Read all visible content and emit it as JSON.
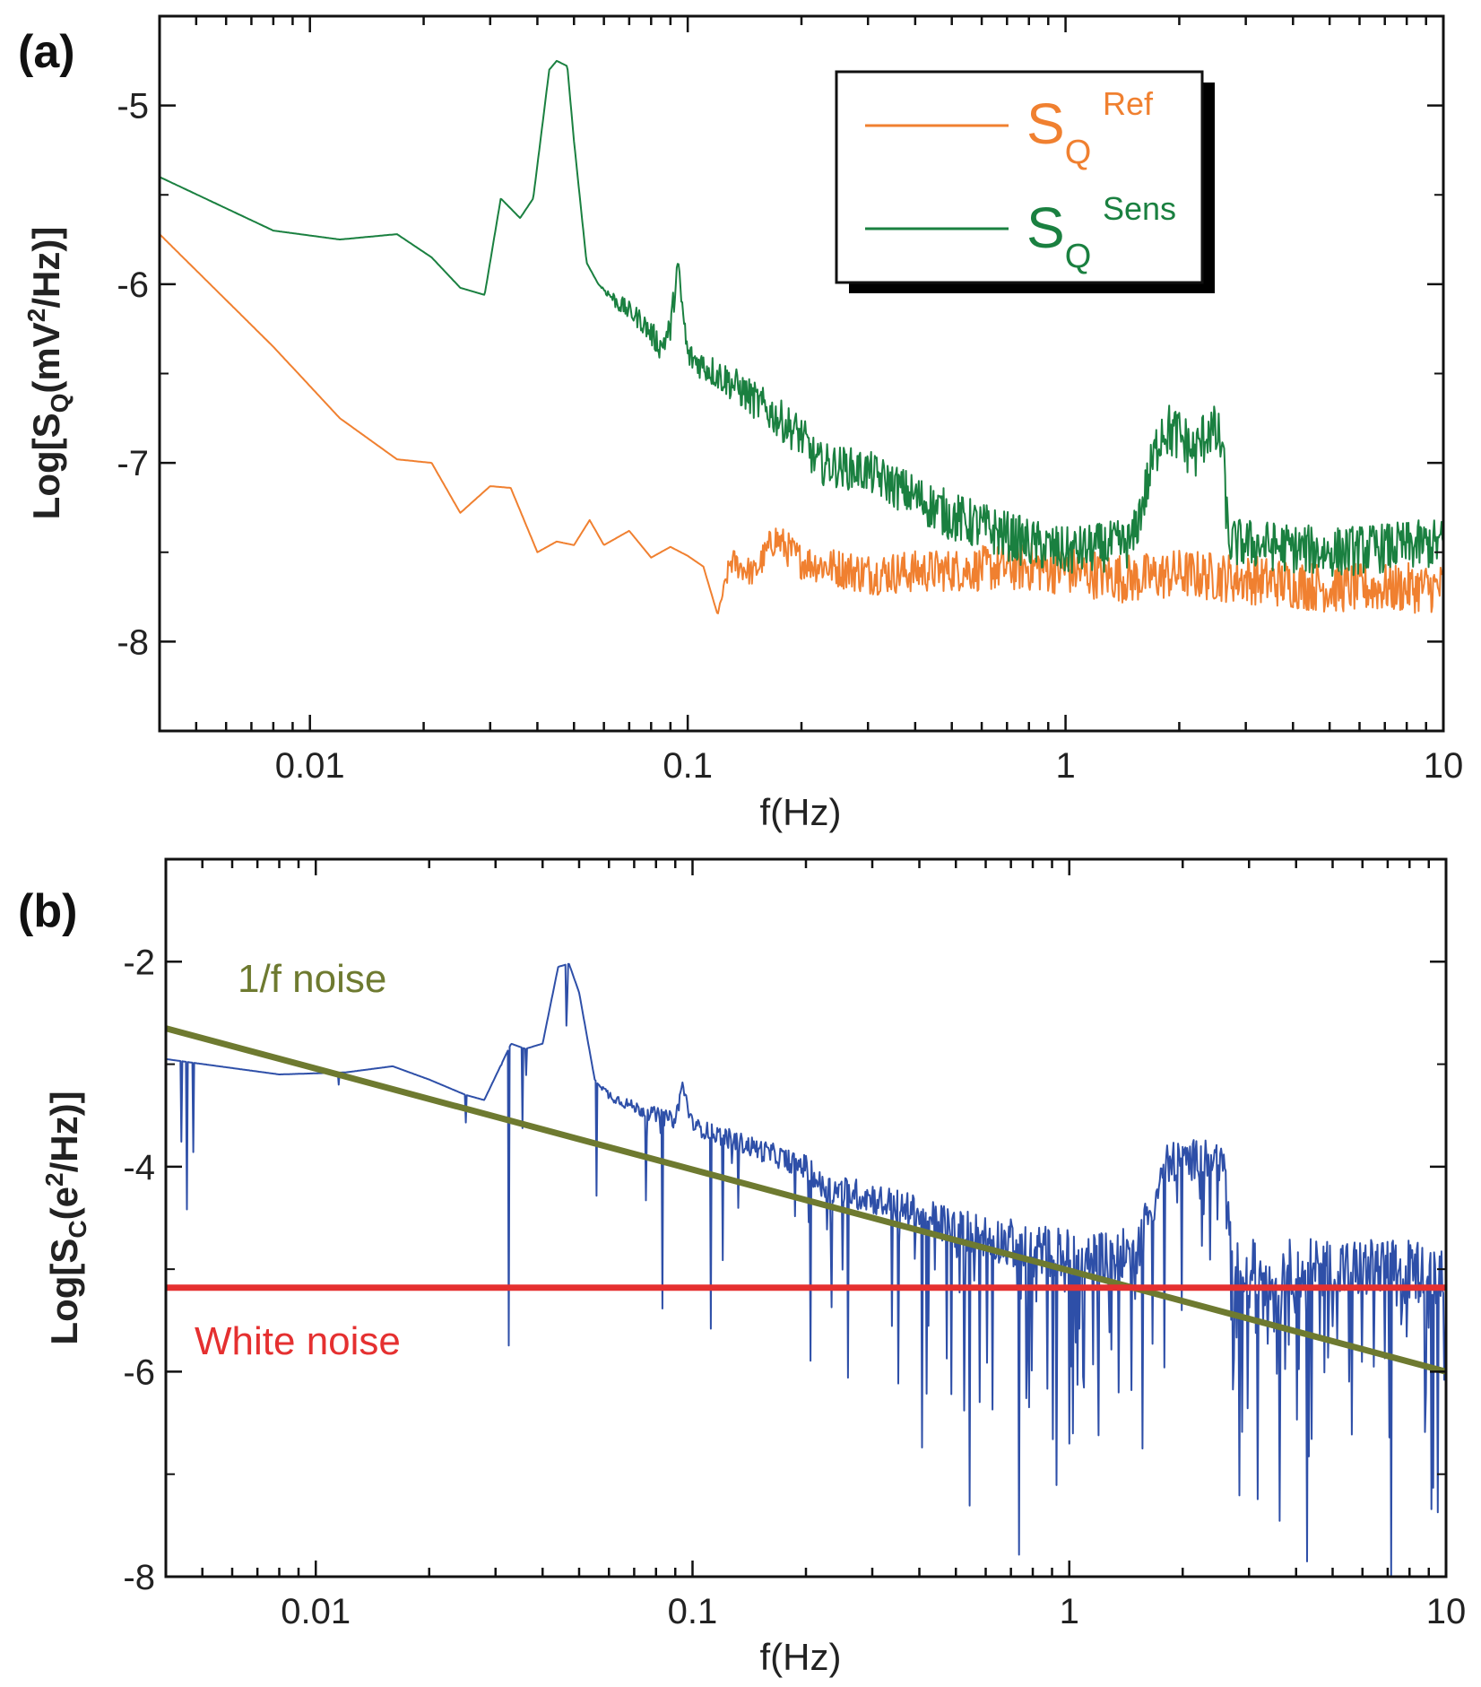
{
  "chart_data": [
    {
      "type": "line",
      "panel_label": "(a)",
      "xscale": "log",
      "xlim": [
        0.004,
        10
      ],
      "ylim": [
        -8.5,
        -4.5
      ],
      "xlabel": "f(Hz)",
      "ylabel": {
        "pre": "Log[S",
        "sub": "Q",
        "mid": "(mV",
        "sup": "2",
        "post": "/Hz)]"
      },
      "xticks": [
        0.01,
        0.1,
        1,
        10
      ],
      "xtick_labels": [
        "0.01",
        "0.1",
        "1",
        "10"
      ],
      "yticks": [
        -8,
        -7,
        -6,
        -5
      ],
      "ytick_labels": [
        "-8",
        "-7",
        "-6",
        "-5"
      ],
      "legend": {
        "position": "top-right",
        "entries": [
          {
            "main": "S",
            "sub": "Q",
            "sup": "Ref",
            "color": "#f08030"
          },
          {
            "main": "S",
            "sub": "Q",
            "sup": "Sens",
            "color": "#1a8040"
          }
        ]
      },
      "series": [
        {
          "name": "S_Q Ref",
          "color": "#f08030",
          "x": [
            0.004,
            0.008,
            0.012,
            0.017,
            0.021,
            0.025,
            0.03,
            0.034,
            0.04,
            0.045,
            0.05,
            0.055,
            0.06,
            0.07,
            0.08,
            0.09,
            0.1,
            0.11,
            0.12,
            0.13,
            0.15,
            0.17,
            0.2,
            0.3,
            0.5,
            0.8,
            1.0,
            1.5,
            2.0,
            3.0,
            5.0,
            10.0
          ],
          "y": [
            -5.72,
            -6.35,
            -6.75,
            -6.98,
            -7.0,
            -7.28,
            -7.13,
            -7.14,
            -7.5,
            -7.44,
            -7.46,
            -7.32,
            -7.46,
            -7.38,
            -7.53,
            -7.47,
            -7.52,
            -7.58,
            -7.85,
            -7.55,
            -7.62,
            -7.42,
            -7.55,
            -7.62,
            -7.6,
            -7.58,
            -7.6,
            -7.65,
            -7.62,
            -7.65,
            -7.7,
            -7.7
          ],
          "noise": [
            0,
            0,
            0,
            0,
            0,
            0,
            0,
            0,
            0,
            0,
            0,
            0,
            0,
            0,
            0,
            0,
            0,
            0,
            0,
            0.08,
            0.08,
            0.1,
            0.1,
            0.12,
            0.12,
            0.14,
            0.14,
            0.14,
            0.14,
            0.14,
            0.14,
            0.14
          ]
        },
        {
          "name": "S_Q Sens",
          "color": "#1a8040",
          "x": [
            0.004,
            0.008,
            0.012,
            0.017,
            0.021,
            0.025,
            0.029,
            0.032,
            0.036,
            0.039,
            0.043,
            0.045,
            0.048,
            0.05,
            0.054,
            0.058,
            0.065,
            0.075,
            0.085,
            0.09,
            0.094,
            0.1,
            0.13,
            0.2,
            0.22,
            0.3,
            0.5,
            0.8,
            1.0,
            1.5,
            1.8,
            2.0,
            2.2,
            2.4,
            2.6,
            2.7,
            3.0,
            5.0,
            10.0
          ],
          "y": [
            -5.4,
            -5.7,
            -5.75,
            -5.72,
            -5.85,
            -6.02,
            -6.06,
            -5.52,
            -5.63,
            -5.52,
            -4.8,
            -4.75,
            -4.78,
            -5.2,
            -5.88,
            -6.0,
            -6.1,
            -6.2,
            -6.35,
            -6.25,
            -5.9,
            -6.4,
            -6.55,
            -6.85,
            -7.0,
            -7.05,
            -7.3,
            -7.45,
            -7.5,
            -7.45,
            -6.8,
            -6.85,
            -6.95,
            -6.8,
            -6.9,
            -7.45,
            -7.45,
            -7.5,
            -7.45
          ],
          "noise": [
            0,
            0,
            0,
            0,
            0,
            0,
            0,
            0,
            0,
            0,
            0,
            0,
            0,
            0,
            0,
            0,
            0.05,
            0.06,
            0.08,
            0.08,
            0.08,
            0.08,
            0.1,
            0.12,
            0.12,
            0.12,
            0.14,
            0.14,
            0.14,
            0.14,
            0.16,
            0.16,
            0.16,
            0.16,
            0.16,
            0.14,
            0.14,
            0.14,
            0.14
          ]
        }
      ]
    },
    {
      "type": "line",
      "panel_label": "(b)",
      "xscale": "log",
      "xlim": [
        0.004,
        10
      ],
      "ylim": [
        -8,
        -1
      ],
      "xlabel": "f(Hz)",
      "ylabel": {
        "pre": "Log[S",
        "sub": "C",
        "mid": "(e",
        "sup": "2",
        "post": "/Hz)]"
      },
      "xticks": [
        0.01,
        0.1,
        1,
        10
      ],
      "xtick_labels": [
        "0.01",
        "0.1",
        "1",
        "10"
      ],
      "yticks": [
        -8,
        -6,
        -4,
        -2
      ],
      "ytick_labels": [
        "-8",
        "-6",
        "-4",
        "-2"
      ],
      "annotations": [
        {
          "text": "1/f noise",
          "color": "#6e7a30"
        },
        {
          "text": "White noise",
          "color": "#e53030"
        }
      ],
      "series": [
        {
          "name": "S_C",
          "color": "#2e4fa8",
          "x": [
            0.004,
            0.008,
            0.012,
            0.016,
            0.02,
            0.025,
            0.028,
            0.033,
            0.036,
            0.04,
            0.044,
            0.047,
            0.05,
            0.055,
            0.06,
            0.07,
            0.08,
            0.09,
            0.094,
            0.1,
            0.13,
            0.2,
            0.22,
            0.3,
            0.5,
            0.8,
            1.0,
            1.5,
            1.8,
            2.0,
            2.4,
            2.6,
            2.7,
            3.0,
            5.0,
            10.0
          ],
          "y": [
            -2.95,
            -3.1,
            -3.08,
            -3.02,
            -3.15,
            -3.3,
            -3.35,
            -2.8,
            -2.85,
            -2.8,
            -2.05,
            -2.02,
            -2.3,
            -3.15,
            -3.3,
            -3.42,
            -3.5,
            -3.55,
            -3.2,
            -3.6,
            -3.75,
            -4.0,
            -4.2,
            -4.3,
            -4.6,
            -4.8,
            -4.85,
            -4.85,
            -3.95,
            -3.95,
            -3.9,
            -4.0,
            -5.0,
            -5.0,
            -5.0,
            -5.0
          ],
          "noise": [
            0,
            0,
            0,
            0,
            0,
            0,
            0,
            0,
            0,
            0,
            0,
            0,
            0,
            0,
            0.05,
            0.06,
            0.08,
            0.08,
            0.08,
            0.08,
            0.1,
            0.12,
            0.14,
            0.16,
            0.2,
            0.25,
            0.25,
            0.25,
            0.2,
            0.2,
            0.2,
            0.2,
            0.25,
            0.3,
            0.3,
            0.3
          ],
          "dips": [
            0.005,
            0.01,
            0.015,
            0.02,
            0.02,
            0.03,
            0.05,
            0.06,
            0.07,
            0.08,
            0.08,
            0.06,
            0.03,
            0.04,
            0.05,
            0.06,
            0.06,
            0.06,
            0.06,
            0.06,
            0.06,
            0.06,
            0.08,
            0.1,
            0.2,
            0.28,
            0.3,
            0.25,
            0.12,
            0.12,
            0.12,
            0.12,
            0.3,
            0.35,
            0.38,
            0.4
          ]
        },
        {
          "name": "1/f noise",
          "color": "#6e7a30",
          "x": [
            0.004,
            10
          ],
          "y": [
            -2.65,
            -6.0
          ]
        },
        {
          "name": "White noise",
          "color": "#e53030",
          "x": [
            0.004,
            10
          ],
          "y": [
            -5.18,
            -5.18
          ]
        }
      ]
    }
  ]
}
